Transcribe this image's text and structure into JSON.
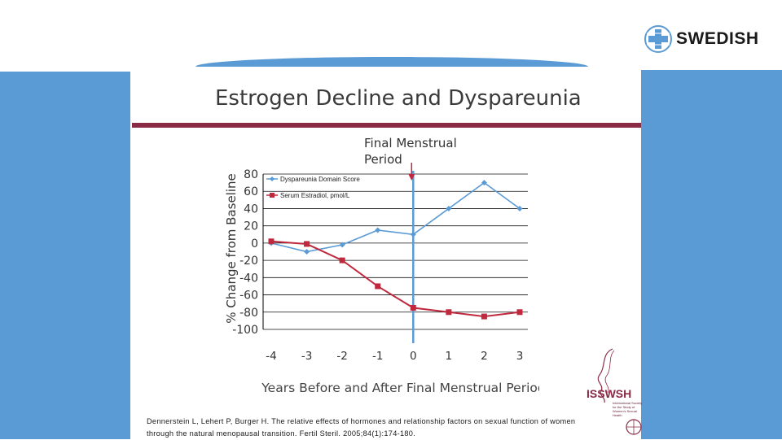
{
  "brand": {
    "logo_text": "SWEDISH"
  },
  "slide": {
    "title": "Estrogen Decline and Dyspareunia"
  },
  "citation": {
    "line1": "Dennerstein L, Lehert P, Burger H. The relative effects of hormones and relationship factors on sexual function of women",
    "line2": "through the natural menopausal transition. Fertil Steril. 2005;84(1):174-180."
  },
  "isswsh": {
    "name": "ISSWSH",
    "subtitle": "International Society for the Study of Women's Sexual Health"
  },
  "colors": {
    "blue": "#5b9bd5",
    "maroon": "#8a2b45",
    "series1": "#5b9bd5",
    "series2": "#c0283d"
  },
  "chart_data": {
    "type": "line",
    "title": "",
    "annotation": {
      "line1": "Final Menstrual",
      "line2": "Period",
      "x": 0
    },
    "xlabel": "Years Before and After Final Menstrual Period",
    "ylabel": "% Change from Baseline",
    "x_ticks": [
      "-4",
      "-3",
      "-2",
      "-1",
      "0",
      "1",
      "2",
      "3"
    ],
    "y_ticks": [
      "80",
      "60",
      "40",
      "20",
      "0",
      "-20",
      "-40",
      "-60",
      "-80",
      "-100"
    ],
    "ylim": [
      -100,
      80
    ],
    "xlim": [
      -4,
      3
    ],
    "grid": true,
    "legend_position": "top-left",
    "series": [
      {
        "name": "Dyspareunia Domain Score",
        "x": [
          -4,
          -3,
          -2,
          -1,
          0,
          1,
          2,
          3
        ],
        "values": [
          0,
          -10,
          -2,
          15,
          10,
          40,
          70,
          40
        ]
      },
      {
        "name": "Serum Estradiol, pmol/L",
        "x": [
          -4,
          -3,
          -2,
          -1,
          0,
          1,
          2,
          3
        ],
        "values": [
          2,
          -1,
          -20,
          -50,
          -75,
          -80,
          -85,
          -80
        ]
      }
    ]
  }
}
